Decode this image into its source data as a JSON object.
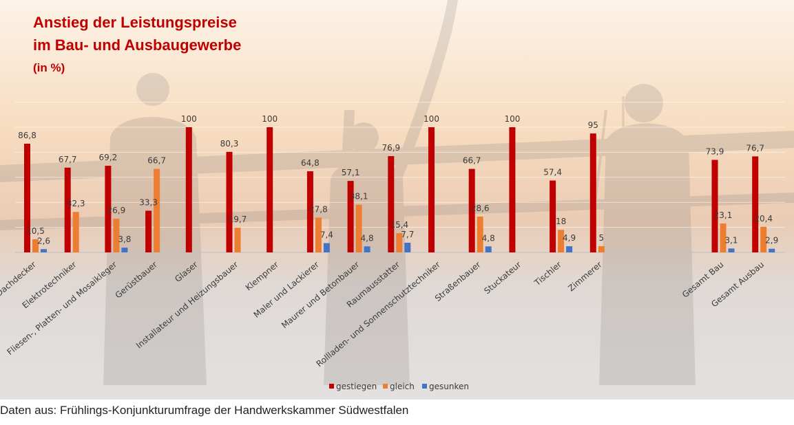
{
  "title": {
    "line1": "Anstieg der Leistungspreise",
    "line2": "im Bau- und Ausbaugewerbe",
    "unit": "(in %)"
  },
  "source_note": "Daten aus: Frühlings-Konjunkturumfrage der Handwerkskammer Südwestfalen",
  "colors": {
    "gestiegen": "#c00000",
    "gleich": "#ed7d31",
    "gesunken": "#4472c4",
    "title": "#c00000",
    "panel_background": "#e5e1df"
  },
  "chart_data": {
    "type": "bar",
    "title": "Anstieg der Leistungspreise im Bau- und Ausbaugewerbe (in %)",
    "ylim": [
      0,
      100
    ],
    "grid": true,
    "legend_position": "bottom",
    "categories": [
      "Dachdecker",
      "Elektrotechniker",
      "Fliesen-, Platten- und Mosaikleger",
      "Gerüstbauer",
      "Glaser",
      "Installateur und Heizungsbauer",
      "Klempner",
      "Maler und Lackierer",
      "Maurer und Betonbauer",
      "Raumausstatter",
      "Rollladen- und Sonnenschutztechniker",
      "Straßenbauer",
      "Stuckateur",
      "Tischler",
      "Zimmerer",
      "Gesamt Bau",
      "Gesamt Ausbau"
    ],
    "series": [
      {
        "name": "gestiegen",
        "values": [
          86.8,
          67.7,
          69.2,
          33.3,
          100,
          80.3,
          100,
          64.8,
          57.1,
          76.9,
          100,
          66.7,
          100,
          57.4,
          95,
          73.9,
          76.7
        ],
        "labels": [
          "86,8",
          "67,7",
          "69,2",
          "33,3",
          "100",
          "80,3",
          "100",
          "64,8",
          "57,1",
          "76,9",
          "100",
          "66,7",
          "100",
          "57,4",
          "95",
          "73,9",
          "76,7"
        ]
      },
      {
        "name": "gleich",
        "values": [
          10.5,
          32.3,
          26.9,
          66.7,
          null,
          19.7,
          null,
          27.8,
          38.1,
          15.4,
          null,
          28.6,
          null,
          18,
          5,
          23.1,
          20.4
        ],
        "labels": [
          "10,5",
          "32,3",
          "26,9",
          "66,7",
          "",
          "19,7",
          "",
          "27,8",
          "38,1",
          "15,4",
          "",
          "28,6",
          "",
          "18",
          "5",
          "23,1",
          "20,4"
        ]
      },
      {
        "name": "gesunken",
        "values": [
          2.6,
          null,
          3.8,
          null,
          null,
          null,
          null,
          7.4,
          4.8,
          7.7,
          null,
          4.8,
          null,
          4.9,
          null,
          3.1,
          2.9
        ],
        "labels": [
          "2,6",
          "",
          "3,8",
          "",
          "",
          "",
          "",
          "7,4",
          "4,8",
          "7,7",
          "",
          "4,8",
          "",
          "4,9",
          "",
          "3,1",
          "2,9"
        ]
      }
    ]
  }
}
